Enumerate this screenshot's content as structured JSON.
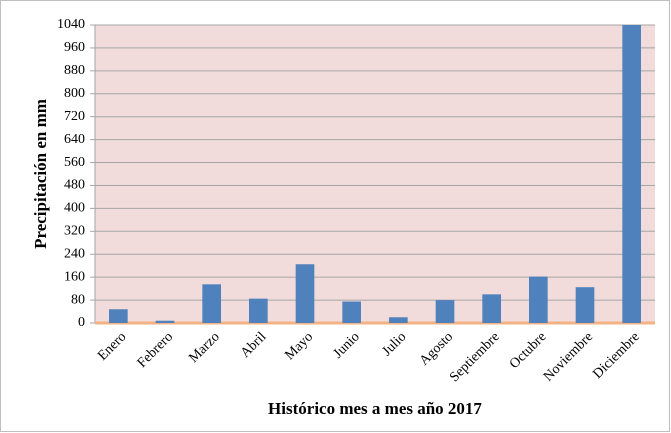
{
  "chart_data": {
    "type": "bar",
    "x_label": "Histórico mes a mes año 2017",
    "y_label": "Precipitación en mm",
    "categories": [
      "Enero",
      "Febrero",
      "Marzo",
      "Abril",
      "Mayo",
      "Junio",
      "Julio",
      "Agosto",
      "Septiembre",
      "Octubre",
      "Noviembre",
      "Diciembre"
    ],
    "values": [
      48,
      8,
      135,
      85,
      205,
      75,
      20,
      80,
      100,
      162,
      125,
      1040
    ],
    "color": "#4f81bd",
    "ylim": [
      0,
      1040
    ],
    "yticks": [
      0,
      80,
      160,
      240,
      320,
      400,
      480,
      560,
      640,
      720,
      800,
      880,
      960,
      1040
    ],
    "grid": true
  }
}
